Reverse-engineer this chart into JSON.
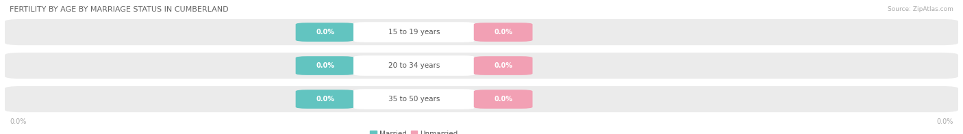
{
  "title": "FERTILITY BY AGE BY MARRIAGE STATUS IN CUMBERLAND",
  "source": "Source: ZipAtlas.com",
  "categories": [
    "15 to 19 years",
    "20 to 34 years",
    "35 to 50 years"
  ],
  "married_values": [
    "0.0%",
    "0.0%",
    "0.0%"
  ],
  "unmarried_values": [
    "0.0%",
    "0.0%",
    "0.0%"
  ],
  "married_color": "#62c4c0",
  "unmarried_color": "#f2a0b4",
  "bar_bg_color": "#ebebeb",
  "bar_bg_color2": "#f5f5f5",
  "label_text_color": "#ffffff",
  "category_text_color": "#555555",
  "category_bg_color": "#ffffff",
  "title_color": "#666666",
  "source_color": "#aaaaaa",
  "axis_label_color": "#aaaaaa",
  "background_color": "#ffffff",
  "left_axis_label": "0.0%",
  "right_axis_label": "0.0%",
  "legend_married": "Married",
  "legend_unmarried": "Unmarried"
}
